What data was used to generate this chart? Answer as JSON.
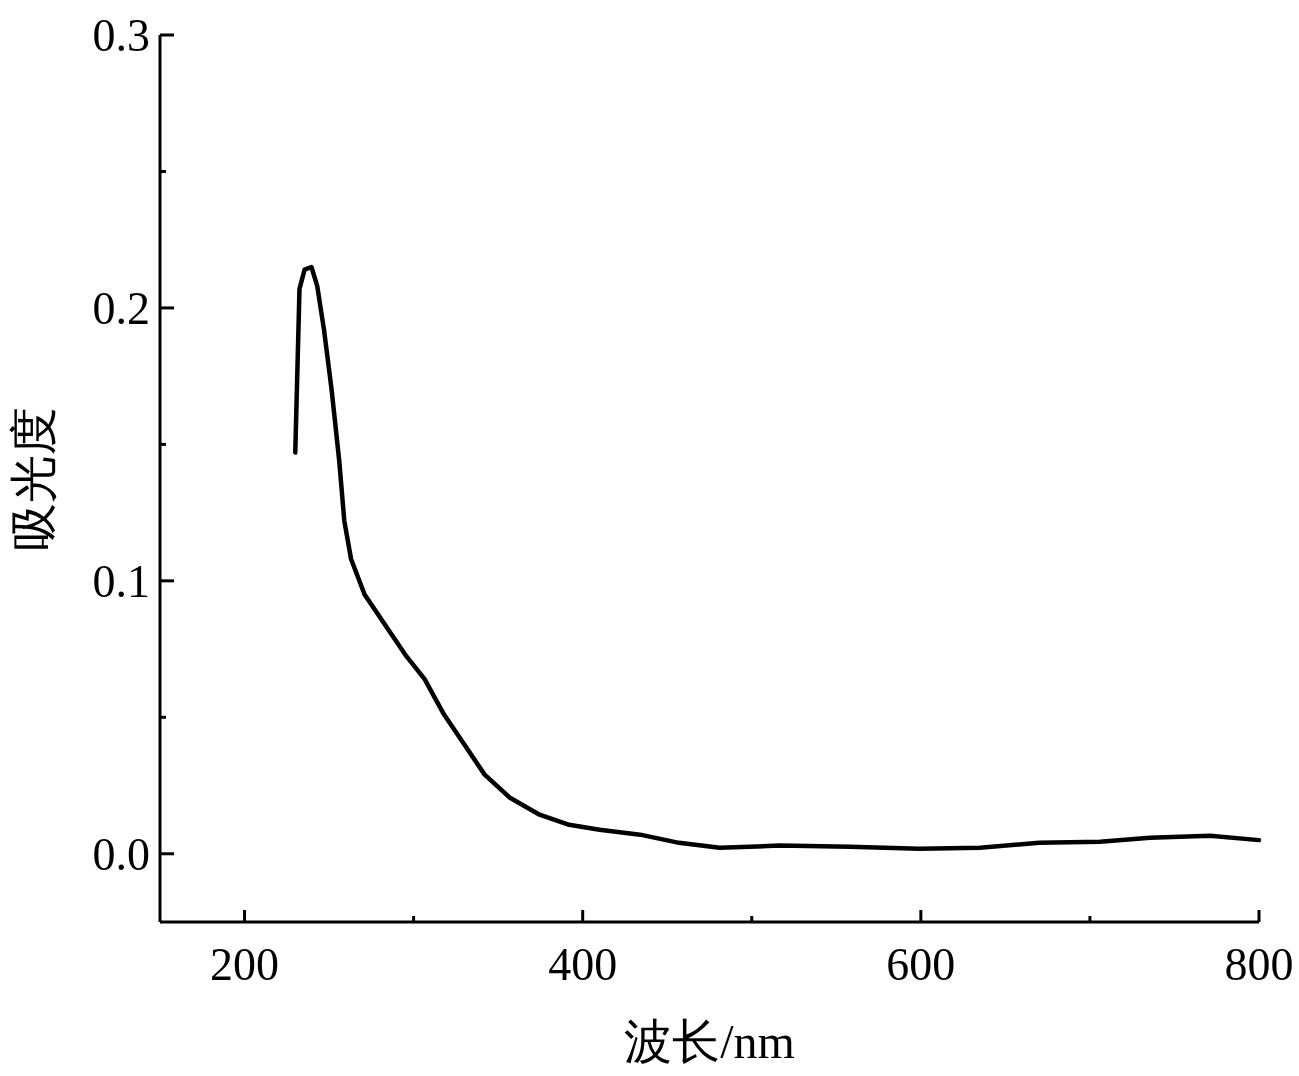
{
  "chart_data": {
    "type": "line",
    "xlabel": "波长/nm",
    "ylabel": "吸光度",
    "xlim": [
      150,
      800
    ],
    "ylim": [
      -0.025,
      0.3
    ],
    "xticks": [
      200,
      {
        "value": 300,
        "label": null
      },
      400,
      {
        "value": 500,
        "label": null
      },
      600,
      {
        "value": 700,
        "label": null
      },
      800
    ],
    "yticks": [
      {
        "value": 0,
        "label": "0.0"
      },
      {
        "value": 0.05,
        "label": null
      },
      0.1,
      {
        "value": 0.15,
        "label": null
      },
      0.2,
      {
        "value": 0.25,
        "label": null
      },
      0.3
    ],
    "grid": false,
    "marker": "none",
    "line_style": "solid",
    "series": [
      {
        "color": "#000000",
        "x": [
          230,
          232.5,
          235.5,
          239.6,
          243,
          247,
          251.5,
          256,
          259,
          263,
          271,
          283,
          295,
          306.5,
          318,
          330,
          342,
          357,
          374.5,
          392,
          410,
          434,
          457,
          481,
          516.5,
          558,
          599,
          635,
          670,
          706,
          735.5,
          771,
          800
        ],
        "values": [
          0.147,
          0.207,
          0.214,
          0.215,
          0.208,
          0.192,
          0.17,
          0.144,
          0.122,
          0.108,
          0.095,
          0.084,
          0.073,
          0.064,
          0.051,
          0.04,
          0.029,
          0.0205,
          0.0143,
          0.0106,
          0.0088,
          0.007,
          0.004,
          0.0022,
          0.003,
          0.0026,
          0.0018,
          0.0022,
          0.004,
          0.0044,
          0.0059,
          0.0066,
          0.005
        ]
      }
    ]
  }
}
